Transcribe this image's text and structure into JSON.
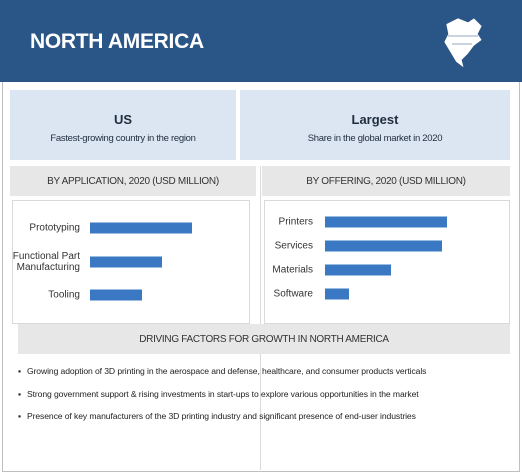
{
  "header": {
    "title": "NORTH AMERICA"
  },
  "highlights": [
    {
      "title": "US",
      "subtitle": "Fastest-growing country in the region"
    },
    {
      "title": "Largest",
      "subtitle": "Share in the global market in 2020"
    }
  ],
  "chart_data": [
    {
      "type": "bar",
      "orientation": "horizontal",
      "title": "BY APPLICATION, 2020 (USD MILLION)",
      "color": "#3b78c4",
      "categories": [
        "Prototyping",
        "Functional Part Manufacturing",
        "Tooling"
      ],
      "values": [
        102,
        72,
        52
      ]
    },
    {
      "type": "bar",
      "orientation": "horizontal",
      "title": "BY OFFERING, 2020 (USD MILLION)",
      "color": "#3b78c4",
      "categories": [
        "Printers",
        "Services",
        "Materials",
        "Software"
      ],
      "values": [
        122,
        117,
        66,
        24
      ]
    }
  ],
  "drivers": {
    "title": "DRIVING FACTORS FOR GROWTH IN NORTH AMERICA",
    "items": [
      "Growing adoption of 3D printing in the aerospace and defense, healthcare, and consumer products verticals",
      "Strong government support & rising investments in start-ups to explore various opportunities in the market",
      "Presence of key manufacturers of the 3D printing industry and significant presence of end-user industries"
    ]
  }
}
